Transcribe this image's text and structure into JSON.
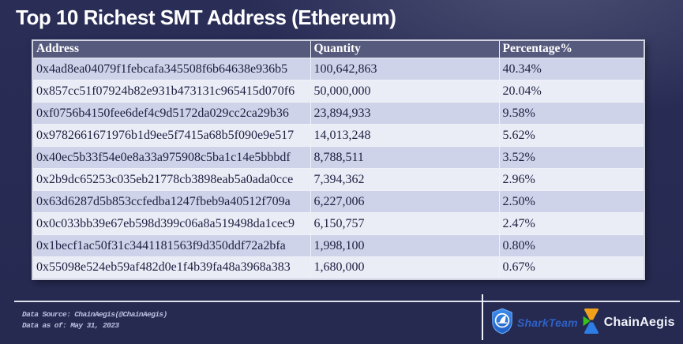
{
  "title": "Top 10 Richest SMT Address (Ethereum)",
  "chart_data": {
    "type": "table",
    "title": "Top 10 Richest SMT Address (Ethereum)",
    "columns": [
      "Address",
      "Quantity",
      "Percentage%"
    ],
    "rows": [
      {
        "address": "0x4ad8ea04079f1febcafa345508f6b64638e936b5",
        "quantity": "100,642,863",
        "percentage": "40.34%"
      },
      {
        "address": "0x857cc51f07924b82e931b473131c965415d070f6",
        "quantity": "50,000,000",
        "percentage": "20.04%"
      },
      {
        "address": "0xf0756b4150fee6def4c9d5172da029cc2ca29b36",
        "quantity": "23,894,933",
        "percentage": "9.58%"
      },
      {
        "address": "0x9782661671976b1d9ee5f7415a68b5f090e9e517",
        "quantity": "14,013,248",
        "percentage": "5.62%"
      },
      {
        "address": "0x40ec5b33f54e0e8a33a975908c5ba1c14e5bbbdf",
        "quantity": "8,788,511",
        "percentage": "3.52%"
      },
      {
        "address": "0x2b9dc65253c035eb21778cb3898eab5a0ada0cce",
        "quantity": "7,394,362",
        "percentage": "2.96%"
      },
      {
        "address": "0x63d6287d5b853ccfedba1247fbeb9a40512f709a",
        "quantity": "6,227,006",
        "percentage": "2.50%"
      },
      {
        "address": "0x0c033bb39e67eb598d399c06a8a519498da1cec9",
        "quantity": "6,150,757",
        "percentage": "2.47%"
      },
      {
        "address": "0x1becf1ac50f31c3441181563f9d350ddf72a2bfa",
        "quantity": "1,998,100",
        "percentage": "0.80%"
      },
      {
        "address": "0x55098e524eb59af482d0e1f4b39fa48a3968a383",
        "quantity": "1,680,000",
        "percentage": "0.67%"
      }
    ]
  },
  "footer": {
    "source_line": "Data Source: ChainAegis(@ChainAegis)",
    "as_of_line": "Data as of: May 31, 2023",
    "sharkteam_label": "SharkTeam",
    "chainaegis_label": "ChainAegis"
  },
  "colors": {
    "background": "#272b53",
    "table_header_bg": "#565a7c",
    "row_odd": "#ced3e9",
    "row_even": "#eaecf6",
    "row_text": "#1d2141",
    "sharkteam_blue": "#2f62c8",
    "shield_blue": "#2e7de0",
    "chainaegis_orange": "#f0a11c",
    "chainaegis_green": "#35c21d",
    "chainaegis_blue": "#2e7de5"
  }
}
